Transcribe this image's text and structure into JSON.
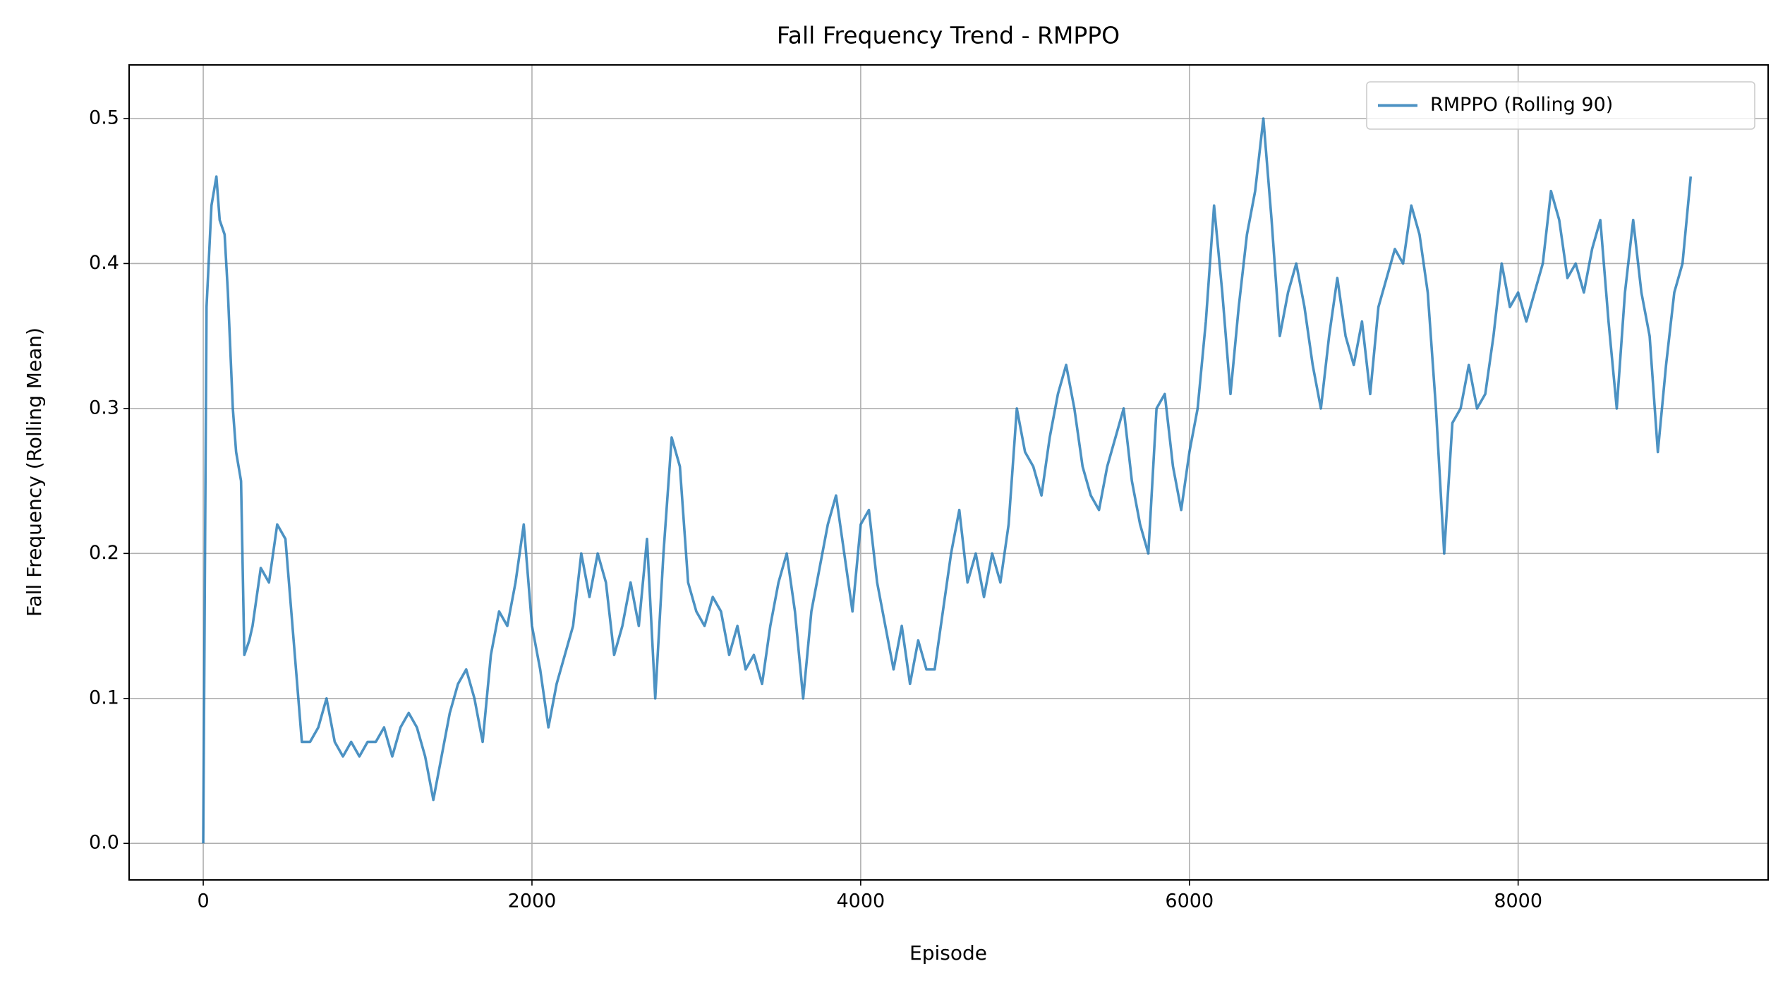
{
  "chart_data": {
    "type": "line",
    "title": "Fall Frequency Trend - RMPPO",
    "x_label": "Episode",
    "y_label": "Fall Frequency (Rolling Mean)",
    "x": [
      0,
      20,
      50,
      80,
      100,
      130,
      150,
      180,
      200,
      230,
      250,
      280,
      300,
      350,
      400,
      450,
      500,
      550,
      600,
      650,
      700,
      750,
      800,
      850,
      900,
      950,
      1000,
      1050,
      1100,
      1150,
      1200,
      1250,
      1300,
      1350,
      1400,
      1450,
      1500,
      1550,
      1600,
      1650,
      1700,
      1750,
      1800,
      1850,
      1900,
      1950,
      2000,
      2050,
      2100,
      2150,
      2200,
      2250,
      2300,
      2350,
      2400,
      2450,
      2500,
      2550,
      2600,
      2650,
      2700,
      2750,
      2800,
      2850,
      2900,
      2950,
      3000,
      3050,
      3100,
      3150,
      3200,
      3250,
      3300,
      3350,
      3400,
      3450,
      3500,
      3550,
      3600,
      3650,
      3700,
      3750,
      3800,
      3850,
      3900,
      3950,
      4000,
      4050,
      4100,
      4150,
      4200,
      4250,
      4300,
      4350,
      4400,
      4450,
      4500,
      4550,
      4600,
      4650,
      4700,
      4750,
      4800,
      4850,
      4900,
      4950,
      5000,
      5050,
      5100,
      5150,
      5200,
      5250,
      5300,
      5350,
      5400,
      5450,
      5500,
      5550,
      5600,
      5650,
      5700,
      5750,
      5800,
      5850,
      5900,
      5950,
      6000,
      6050,
      6100,
      6150,
      6200,
      6250,
      6300,
      6350,
      6400,
      6450,
      6500,
      6550,
      6600,
      6650,
      6700,
      6750,
      6800,
      6850,
      6900,
      6950,
      7000,
      7050,
      7100,
      7150,
      7200,
      7250,
      7300,
      7350,
      7400,
      7450,
      7500,
      7550,
      7600,
      7650,
      7700,
      7750,
      7800,
      7850,
      7900,
      7950,
      8000,
      8050,
      8100,
      8150,
      8200,
      8250,
      8300,
      8350,
      8400,
      8450,
      8500,
      8550,
      8600,
      8650,
      8700,
      8750,
      8800,
      8850,
      8900,
      8950,
      9000,
      9050
    ],
    "series": [
      {
        "name": "RMPPO (Rolling 90)",
        "color": "#1f77b4",
        "values": [
          0.0,
          0.37,
          0.44,
          0.46,
          0.43,
          0.42,
          0.38,
          0.3,
          0.27,
          0.25,
          0.13,
          0.14,
          0.15,
          0.19,
          0.18,
          0.22,
          0.21,
          0.14,
          0.07,
          0.07,
          0.08,
          0.1,
          0.07,
          0.06,
          0.07,
          0.06,
          0.07,
          0.07,
          0.08,
          0.06,
          0.08,
          0.09,
          0.08,
          0.06,
          0.03,
          0.06,
          0.09,
          0.11,
          0.12,
          0.1,
          0.07,
          0.13,
          0.16,
          0.15,
          0.18,
          0.22,
          0.15,
          0.12,
          0.08,
          0.11,
          0.13,
          0.15,
          0.2,
          0.17,
          0.2,
          0.18,
          0.13,
          0.15,
          0.18,
          0.15,
          0.21,
          0.1,
          0.2,
          0.28,
          0.26,
          0.18,
          0.16,
          0.15,
          0.17,
          0.16,
          0.13,
          0.15,
          0.12,
          0.13,
          0.11,
          0.15,
          0.18,
          0.2,
          0.16,
          0.1,
          0.16,
          0.19,
          0.22,
          0.24,
          0.2,
          0.16,
          0.22,
          0.23,
          0.18,
          0.15,
          0.12,
          0.15,
          0.11,
          0.14,
          0.12,
          0.12,
          0.16,
          0.2,
          0.23,
          0.18,
          0.2,
          0.17,
          0.2,
          0.18,
          0.22,
          0.3,
          0.27,
          0.26,
          0.24,
          0.28,
          0.31,
          0.33,
          0.3,
          0.26,
          0.24,
          0.23,
          0.26,
          0.28,
          0.3,
          0.25,
          0.22,
          0.2,
          0.3,
          0.31,
          0.26,
          0.23,
          0.27,
          0.3,
          0.36,
          0.44,
          0.38,
          0.31,
          0.37,
          0.42,
          0.45,
          0.5,
          0.43,
          0.35,
          0.38,
          0.4,
          0.37,
          0.33,
          0.3,
          0.35,
          0.39,
          0.35,
          0.33,
          0.36,
          0.31,
          0.37,
          0.39,
          0.41,
          0.4,
          0.44,
          0.42,
          0.38,
          0.3,
          0.2,
          0.29,
          0.3,
          0.33,
          0.3,
          0.31,
          0.35,
          0.4,
          0.37,
          0.38,
          0.36,
          0.38,
          0.4,
          0.45,
          0.43,
          0.39,
          0.4,
          0.38,
          0.41,
          0.43,
          0.36,
          0.3,
          0.38,
          0.43,
          0.38,
          0.35,
          0.27,
          0.33,
          0.38,
          0.4,
          0.46
        ]
      }
    ],
    "xlim": [
      -451,
      9521
    ],
    "ylim": [
      -0.0252,
      0.537
    ],
    "xticks": [
      0,
      2000,
      4000,
      6000,
      8000
    ],
    "yticks": [
      {
        "value": 0,
        "label": "0.0"
      },
      0.1,
      0.2,
      0.3,
      0.4,
      0.5
    ],
    "grid": true,
    "legend": "upper right"
  }
}
